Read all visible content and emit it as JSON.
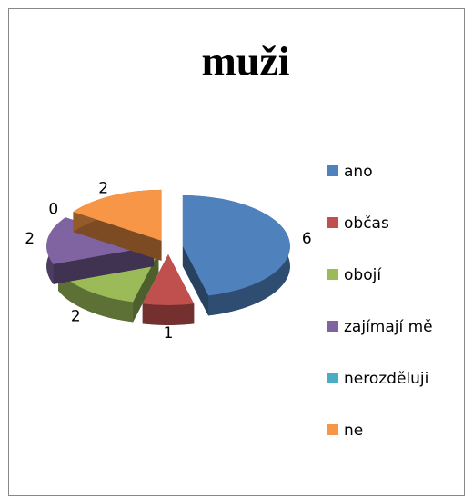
{
  "chart_data": {
    "type": "pie",
    "title": "muži",
    "categories": [
      "ano",
      "občas",
      "obojí",
      "zajímají mě",
      "nerozděluji",
      "ne"
    ],
    "values": [
      6,
      1,
      2,
      2,
      0,
      2
    ],
    "colors": [
      "#4f81bd",
      "#c0504d",
      "#9bbb59",
      "#8064a2",
      "#4bacc6",
      "#f79646"
    ],
    "exploded": true,
    "three_d": true,
    "legend": "right"
  }
}
